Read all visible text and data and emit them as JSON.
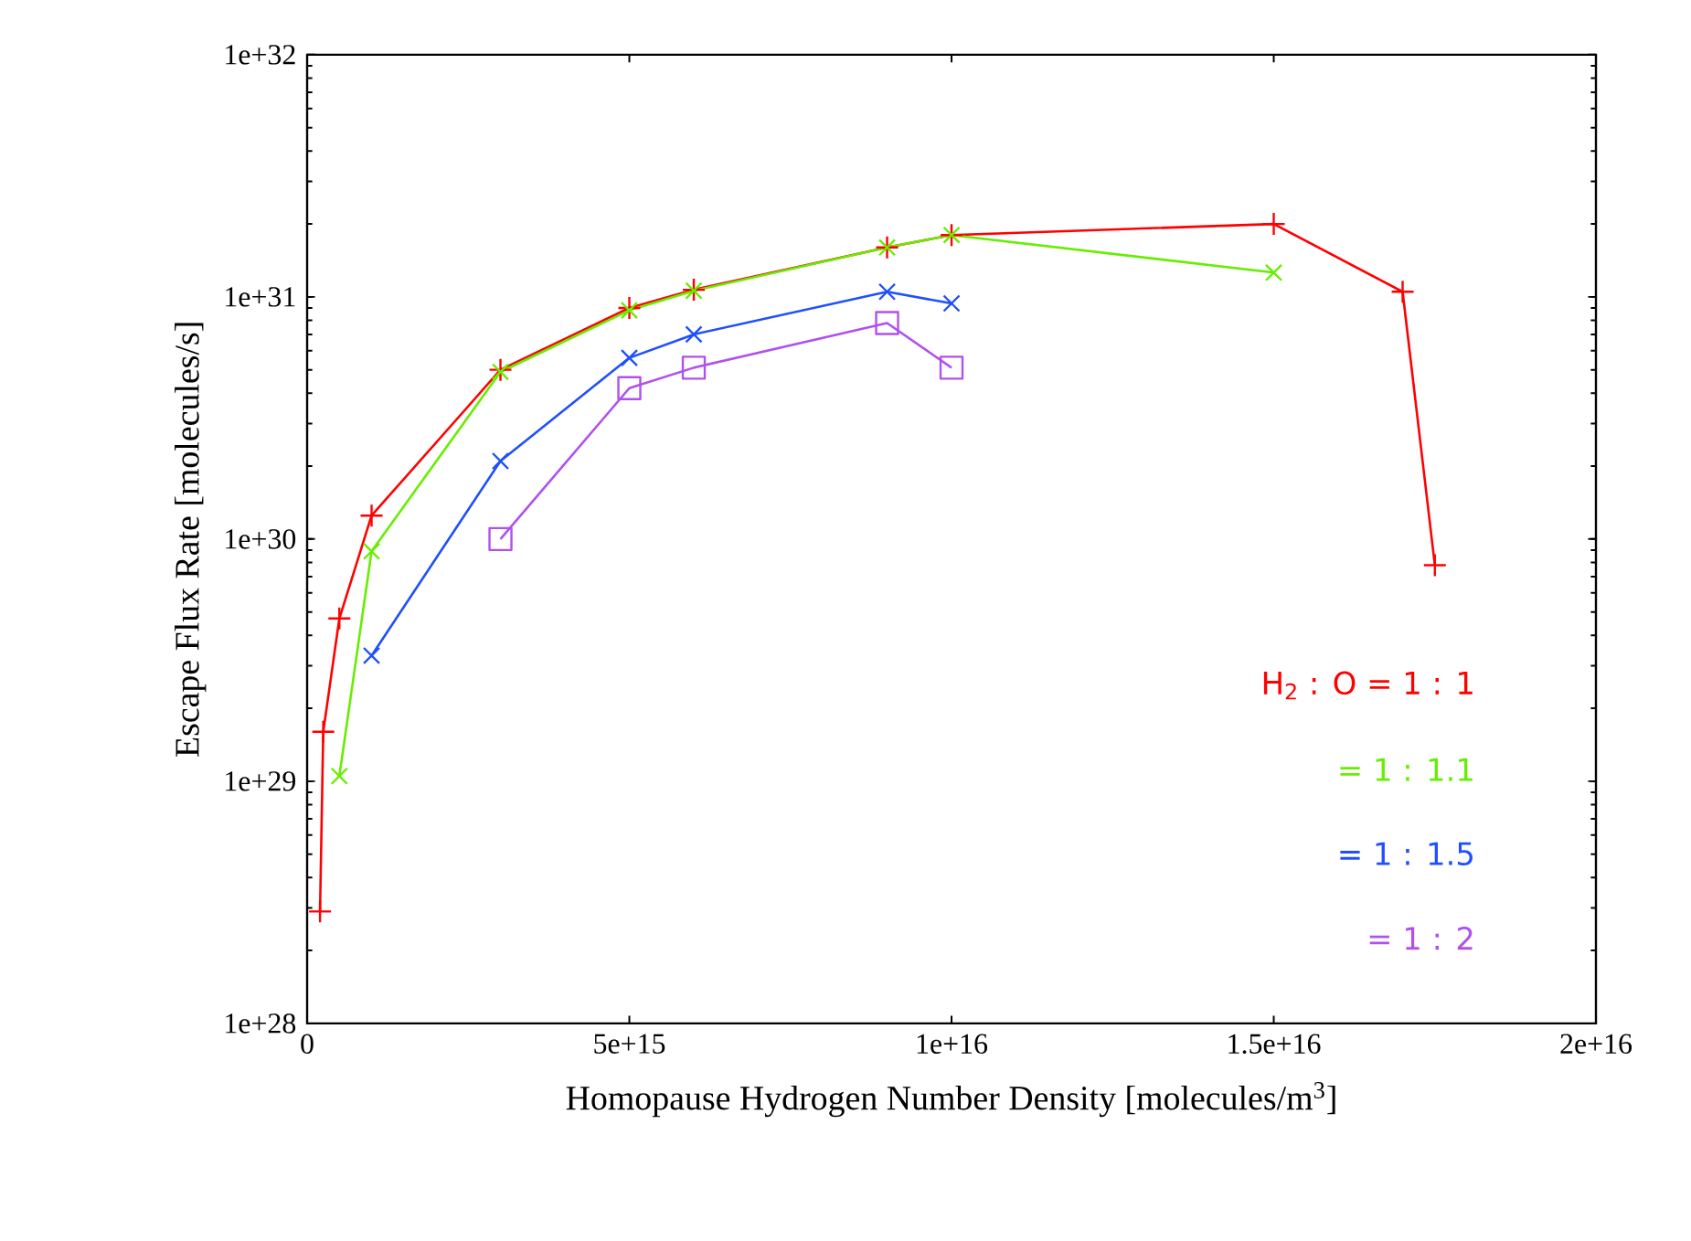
{
  "chart_data": {
    "type": "line",
    "xlabel": "Homopause Hydrogen Number Density [molecules/m$^{3}$]",
    "ylabel": "Escape Flux Rate [molecules/s]",
    "log": "y",
    "legend": "right",
    "xlim": [
      0,
      2e+16
    ],
    "ylim": [
      1e+28,
      1e+32
    ],
    "xticks": [
      0,
      {
        "value": 5000000000000000.0,
        "label": "5e+15"
      },
      {
        "value": 1e+16,
        "label": "1e+16"
      },
      {
        "value": 1.5e+16,
        "label": "1.5e+16"
      },
      {
        "value": 2e+16,
        "label": "2e+16"
      }
    ],
    "yticks": [
      {
        "value": 1e+28,
        "label": "1e+28"
      },
      {
        "value": 1e+29,
        "label": "1e+29"
      },
      {
        "value": 1e+30,
        "label": "1e+30"
      },
      {
        "value": 1e+31,
        "label": "1e+31"
      },
      {
        "value": 1e+32,
        "label": "1e+32"
      }
    ],
    "series": [
      {
        "name": "H$_{2}$ : O = 1 : 1",
        "color": "#ff0000",
        "marker": "plus",
        "x": [
          200000000000000.0,
          250000000000000.0,
          500000000000000.0,
          1000000000000000.0,
          3000000000000000.0,
          5000000000000000.0,
          6000000000000000.0,
          9000000000000000.0,
          1e+16,
          1.5e+16,
          1.7e+16,
          1.75e+16
        ],
        "values": [
          2.9e+28,
          1.6e+29,
          4.7e+29,
          1.25e+30,
          5e+30,
          9e+30,
          1.07e+31,
          1.6e+31,
          1.8e+31,
          2e+31,
          1.05e+31,
          7.8e+29
        ]
      },
      {
        "name": "= 1 : 1.1",
        "color": "#66ee00",
        "marker": "cross",
        "x": [
          500000000000000.0,
          1000000000000000.0,
          3000000000000000.0,
          5000000000000000.0,
          6000000000000000.0,
          9000000000000000.0,
          1e+16,
          1.5e+16
        ],
        "values": [
          1.05e+29,
          8.9e+29,
          4.9e+30,
          8.8e+30,
          1.06e+31,
          1.6e+31,
          1.8e+31,
          1.26e+31
        ]
      },
      {
        "name": "= 1 : 1.5",
        "color": "#1f4fff",
        "marker": "cross",
        "x": [
          1000000000000000.0,
          3000000000000000.0,
          5000000000000000.0,
          6000000000000000.0,
          9000000000000000.0,
          1e+16
        ],
        "values": [
          3.3e+29,
          2.1e+30,
          5.6e+30,
          7e+30,
          1.05e+31,
          9.4e+30
        ]
      },
      {
        "name": "= 1 : 2",
        "color": "#b050f0",
        "marker": "square",
        "x": [
          3000000000000000.0,
          5000000000000000.0,
          6000000000000000.0,
          9000000000000000.0,
          1e+16
        ],
        "values": [
          1e+30,
          4.2e+30,
          5.1e+30,
          7.8e+30,
          5.1e+30
        ]
      }
    ]
  }
}
